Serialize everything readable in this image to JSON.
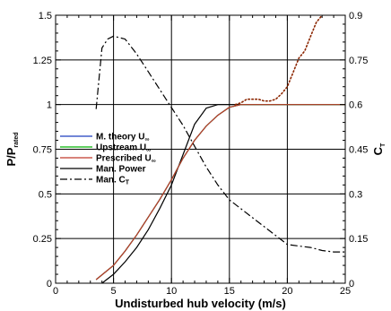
{
  "chart_data": {
    "type": "line",
    "xlabel": "Undisturbed hub velocity (m/s)",
    "ylabel_left": {
      "main": "P/P",
      "sub": "rated"
    },
    "ylabel_right": {
      "main": "C",
      "sub": "T"
    },
    "xlim": [
      0,
      25
    ],
    "ylim_left": [
      0,
      1.5
    ],
    "ylim_right": [
      0,
      0.9
    ],
    "x_ticks": [
      0,
      5,
      10,
      15,
      20,
      25
    ],
    "y_ticks_left": [
      0,
      0.25,
      0.5,
      0.75,
      1,
      1.25,
      1.5
    ],
    "y_ticks_left_labels": [
      "0",
      "0.25",
      "0.5",
      "0.75",
      "1",
      "1.25",
      "1.5"
    ],
    "y_ticks_right": [
      0,
      0.15,
      0.3,
      0.45,
      0.6,
      0.75,
      0.9
    ],
    "y_ticks_right_labels": [
      "0",
      "0.15",
      "0.3",
      "0.45",
      "0.6",
      "0.75",
      "0.9"
    ],
    "grid": true,
    "legend_position": "left-center",
    "series": [
      {
        "name": "M. theory U",
        "name_sub": "∞",
        "color": "#1f3fbf",
        "style": "solid",
        "axis": "left",
        "x": [
          3.5,
          5,
          6,
          7,
          8,
          9,
          10,
          11,
          12,
          13,
          14,
          15,
          16,
          17,
          18,
          19,
          20,
          21,
          22,
          23,
          24,
          25
        ],
        "y": [
          0.02,
          0.1,
          0.18,
          0.27,
          0.37,
          0.47,
          0.58,
          0.7,
          0.8,
          0.88,
          0.94,
          0.985,
          1.0,
          1.0,
          1.0,
          1.0,
          1.0,
          1.0,
          1.0,
          1.0,
          1.0,
          1.0
        ]
      },
      {
        "name": "Upstream U",
        "name_sub": "∞",
        "color": "#00b000",
        "style": "solid",
        "axis": "left",
        "x": [
          3.5,
          5,
          6,
          7,
          8,
          9,
          10,
          11,
          12,
          13,
          14,
          15,
          16,
          17,
          18,
          19,
          20,
          21,
          22,
          23,
          24,
          25
        ],
        "y": [
          0.02,
          0.1,
          0.18,
          0.27,
          0.37,
          0.47,
          0.58,
          0.7,
          0.8,
          0.88,
          0.94,
          0.985,
          1.0,
          1.0,
          1.0,
          1.0,
          1.0,
          1.0,
          1.0,
          1.0,
          1.0,
          1.0
        ]
      },
      {
        "name": "Prescribed U",
        "name_sub": "∞",
        "color": "#c0392b",
        "style": "solid",
        "axis": "left",
        "x": [
          3.5,
          5,
          6,
          7,
          8,
          9,
          10,
          11,
          12,
          13,
          14,
          15,
          16,
          17,
          18,
          19,
          20,
          21,
          22,
          23,
          24,
          25
        ],
        "y": [
          0.02,
          0.1,
          0.18,
          0.27,
          0.37,
          0.47,
          0.58,
          0.7,
          0.8,
          0.88,
          0.94,
          0.985,
          1.0,
          1.0,
          1.0,
          1.0,
          1.0,
          1.0,
          1.0,
          1.0,
          1.0,
          1.0
        ]
      },
      {
        "name": "Man. Power",
        "name_sub": "",
        "color": "#000000",
        "style": "solid",
        "axis": "left",
        "x": [
          4,
          5,
          6,
          7,
          8,
          9,
          10,
          11,
          12,
          13,
          14,
          15,
          16,
          17,
          18,
          19,
          20,
          21,
          22,
          23,
          24,
          25
        ],
        "y": [
          0.0,
          0.05,
          0.12,
          0.2,
          0.3,
          0.42,
          0.55,
          0.72,
          0.89,
          0.98,
          1.0,
          1.0,
          1.0,
          1.0,
          1.0,
          1.0,
          1.0,
          1.0,
          1.0,
          1.0,
          1.0,
          1.0
        ]
      },
      {
        "name": "Man. C",
        "name_sub": "T",
        "color": "#000000",
        "style": "dashdot",
        "axis": "right",
        "x": [
          3.5,
          4,
          4.5,
          5,
          6,
          7,
          8,
          9,
          10,
          11,
          12,
          13,
          14,
          15,
          16,
          17,
          18,
          19,
          20,
          21,
          22,
          23,
          24,
          25
        ],
        "y": [
          0.585,
          0.79,
          0.82,
          0.83,
          0.82,
          0.77,
          0.71,
          0.65,
          0.59,
          0.53,
          0.46,
          0.39,
          0.33,
          0.28,
          0.25,
          0.22,
          0.19,
          0.16,
          0.13,
          0.125,
          0.12,
          0.11,
          0.105,
          0.105
        ]
      },
      {
        "name": "",
        "name_sub": "",
        "color": "#8b2500",
        "style": "dotted",
        "axis": "left",
        "in_legend": false,
        "x": [
          15.5,
          16,
          16.5,
          17,
          17.5,
          18,
          18.5,
          19,
          19.5,
          20,
          20.5,
          21,
          21.5,
          22,
          22.5,
          23
        ],
        "y": [
          1.0,
          1.01,
          1.03,
          1.03,
          1.03,
          1.02,
          1.02,
          1.03,
          1.06,
          1.1,
          1.18,
          1.26,
          1.3,
          1.38,
          1.46,
          1.5
        ]
      }
    ]
  }
}
